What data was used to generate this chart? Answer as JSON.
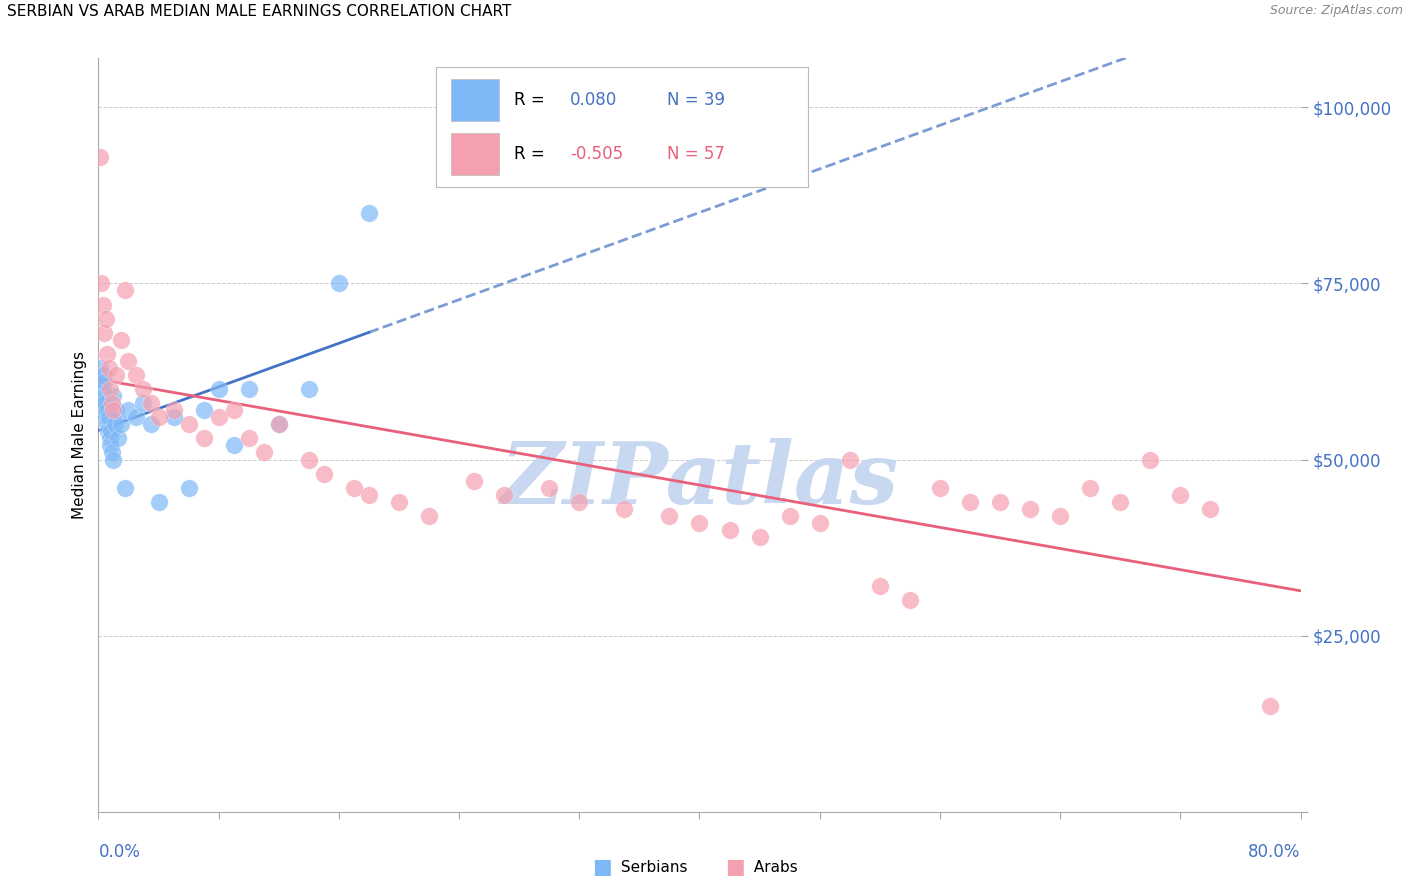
{
  "title": "SERBIAN VS ARAB MEDIAN MALE EARNINGS CORRELATION CHART",
  "source": "Source: ZipAtlas.com",
  "ylabel": "Median Male Earnings",
  "yticks": [
    0,
    25000,
    50000,
    75000,
    100000
  ],
  "ytick_labels": [
    "",
    "$25,000",
    "$50,000",
    "$75,000",
    "$100,000"
  ],
  "xmin": 0.0,
  "xmax": 80.0,
  "ymin": 0,
  "ymax": 107000,
  "serbian_color": "#7EB8F7",
  "arab_color": "#F4A0B0",
  "serbian_line_color": "#4472C4",
  "arab_line_color": "#E8607A",
  "watermark": "ZIPatlas",
  "watermark_color": "#C8D8F0",
  "axis_label_color": "#4472C4",
  "legend_R_color_serbian": "#4472C4",
  "legend_R_color_arab": "#E8607A",
  "serbians_x": [
    0.1,
    0.15,
    0.2,
    0.25,
    0.3,
    0.35,
    0.4,
    0.45,
    0.5,
    0.55,
    0.6,
    0.65,
    0.7,
    0.75,
    0.8,
    0.85,
    0.9,
    0.95,
    1.0,
    1.1,
    1.2,
    1.3,
    1.5,
    1.8,
    2.0,
    2.5,
    3.0,
    3.5,
    4.0,
    5.0,
    6.0,
    7.0,
    8.0,
    9.0,
    10.0,
    12.0,
    14.0,
    16.0,
    18.0
  ],
  "serbians_y": [
    63000,
    60000,
    58000,
    57000,
    62000,
    59000,
    61000,
    58000,
    56000,
    57000,
    55000,
    54000,
    56000,
    53000,
    52000,
    54000,
    51000,
    50000,
    59000,
    55000,
    57000,
    53000,
    55000,
    46000,
    57000,
    56000,
    58000,
    55000,
    44000,
    56000,
    46000,
    57000,
    60000,
    52000,
    60000,
    55000,
    60000,
    75000,
    85000
  ],
  "arabs_x": [
    0.1,
    0.2,
    0.3,
    0.4,
    0.5,
    0.6,
    0.7,
    0.8,
    0.9,
    1.0,
    1.2,
    1.5,
    1.8,
    2.0,
    2.5,
    3.0,
    3.5,
    4.0,
    5.0,
    6.0,
    7.0,
    8.0,
    9.0,
    10.0,
    11.0,
    12.0,
    14.0,
    15.0,
    17.0,
    18.0,
    20.0,
    22.0,
    25.0,
    27.0,
    30.0,
    32.0,
    35.0,
    38.0,
    40.0,
    42.0,
    44.0,
    46.0,
    48.0,
    50.0,
    52.0,
    54.0,
    56.0,
    58.0,
    60.0,
    62.0,
    64.0,
    66.0,
    68.0,
    70.0,
    72.0,
    74.0,
    78.0
  ],
  "arabs_y": [
    93000,
    75000,
    72000,
    68000,
    70000,
    65000,
    63000,
    60000,
    58000,
    57000,
    62000,
    67000,
    74000,
    64000,
    62000,
    60000,
    58000,
    56000,
    57000,
    55000,
    53000,
    56000,
    57000,
    53000,
    51000,
    55000,
    50000,
    48000,
    46000,
    45000,
    44000,
    42000,
    47000,
    45000,
    46000,
    44000,
    43000,
    42000,
    41000,
    40000,
    39000,
    42000,
    41000,
    50000,
    32000,
    30000,
    46000,
    44000,
    44000,
    43000,
    42000,
    46000,
    44000,
    50000,
    45000,
    43000,
    15000
  ]
}
